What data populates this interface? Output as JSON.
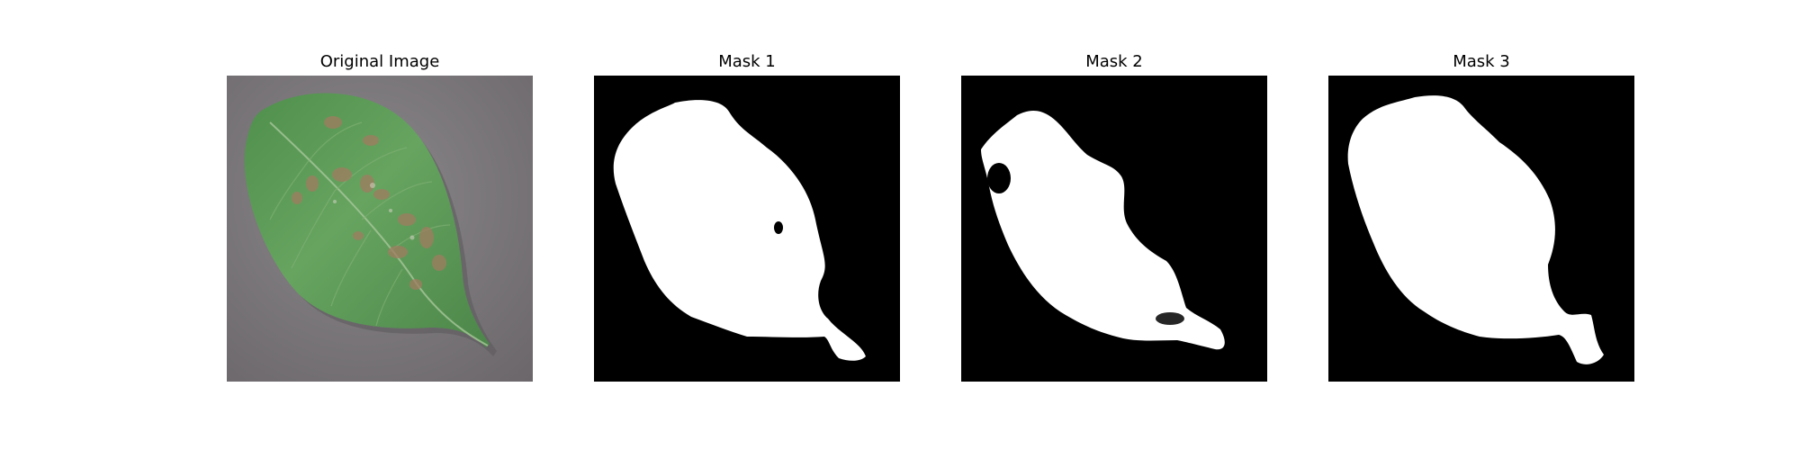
{
  "panels": [
    {
      "title": "Original Image",
      "icon": "leaf-photo"
    },
    {
      "title": "Mask 1",
      "icon": "leaf-mask"
    },
    {
      "title": "Mask 2",
      "icon": "leaf-mask"
    },
    {
      "title": "Mask 3",
      "icon": "leaf-mask"
    }
  ],
  "colors": {
    "background": "#ffffff",
    "photo_backdrop": "#7b777b",
    "leaf_green": "#5f9e59",
    "leaf_dark": "#3f7a3c",
    "lesion_brown": "#9c7e5f",
    "mask_background": "#000000",
    "mask_foreground": "#ffffff"
  }
}
